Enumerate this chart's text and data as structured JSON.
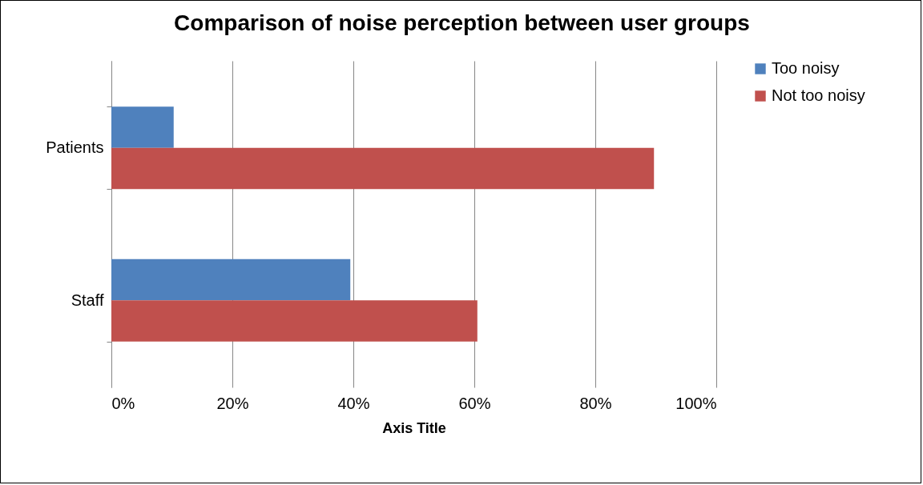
{
  "chart_data": {
    "type": "bar",
    "orientation": "horizontal",
    "title": "Comparison of noise perception between user groups",
    "xlabel": "Axis Title",
    "categories": [
      "Patients",
      "Staff"
    ],
    "series": [
      {
        "name": "Too noisy",
        "color": "#4f81bd",
        "values": [
          10.3,
          39.5
        ]
      },
      {
        "name": "Not too noisy",
        "color": "#c0504d",
        "values": [
          89.7,
          60.5
        ]
      }
    ],
    "xlim": [
      0,
      100
    ],
    "xticks": [
      {
        "value": 0,
        "label": "0%"
      },
      {
        "value": 20,
        "label": "20%"
      },
      {
        "value": 40,
        "label": "40%"
      },
      {
        "value": 60,
        "label": "60%"
      },
      {
        "value": 80,
        "label": "80%"
      },
      {
        "value": 100,
        "label": "100%"
      }
    ],
    "grid": "x",
    "legend": "right"
  }
}
